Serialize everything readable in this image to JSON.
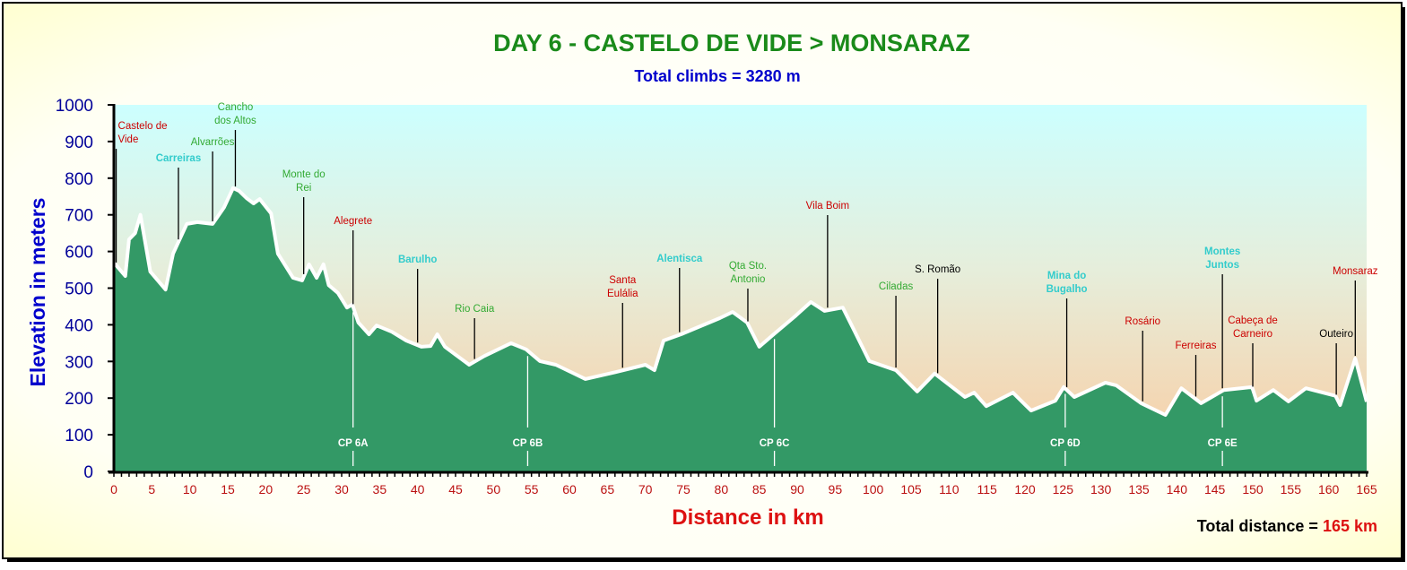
{
  "chart_data": {
    "type": "area",
    "title": "DAY 6 - CASTELO DE VIDE > MONSARAZ",
    "subtitle": "Total climbs = 3280 m",
    "xlabel": "Distance in km",
    "ylabel": "Elevation in meters",
    "footer_label": "Total distance = ",
    "footer_value": "165 km",
    "xlim": [
      0,
      165
    ],
    "ylim": [
      0,
      1000
    ],
    "x_ticks": [
      0,
      5,
      10,
      15,
      20,
      25,
      30,
      35,
      40,
      45,
      50,
      55,
      60,
      65,
      70,
      75,
      80,
      85,
      90,
      95,
      100,
      105,
      110,
      115,
      120,
      125,
      130,
      135,
      140,
      145,
      150,
      155,
      160,
      165
    ],
    "y_ticks": [
      0,
      100,
      200,
      300,
      400,
      500,
      600,
      700,
      800,
      900,
      1000
    ],
    "grid": false,
    "series": [
      {
        "name": "Elevation",
        "x": [
          0,
          0.4,
          1.5,
          2,
          2.8,
          3.5,
          4.8,
          6.8,
          7.8,
          9.6,
          11,
          13,
          14.5,
          15.7,
          16.5,
          17.5,
          18.4,
          19.2,
          20.7,
          21.6,
          23.6,
          24.8,
          25.7,
          26.7,
          27.6,
          28.3,
          29.5,
          30.7,
          31.4,
          32.2,
          33.6,
          34.6,
          36.6,
          38.5,
          40.5,
          41.7,
          42.6,
          43.6,
          46.8,
          48.8,
          52.3,
          54.3,
          56.1,
          58.2,
          62.1,
          66.1,
          70,
          71.2,
          72.4,
          74.7,
          79.8,
          81.5,
          83.4,
          85,
          86.9,
          89.7,
          91.8,
          93.6,
          96,
          97.6,
          99.5,
          103,
          105.8,
          108.1,
          112.1,
          113.3,
          114.9,
          118.4,
          120.8,
          124,
          125.1,
          126.5,
          130.6,
          132,
          135.3,
          138.5,
          140.6,
          143.2,
          146.2,
          149.9,
          150.5,
          152.7,
          154.7,
          157,
          160.9,
          161.5,
          163.5,
          165
        ],
        "y": [
          570,
          560,
          533,
          633,
          650,
          700,
          545,
          496,
          594,
          675,
          680,
          675,
          720,
          773,
          765,
          745,
          731,
          743,
          704,
          594,
          528,
          521,
          565,
          528,
          565,
          508,
          487,
          447,
          455,
          406,
          374,
          398,
          381,
          357,
          340,
          342,
          374,
          340,
          291,
          315,
          350,
          333,
          301,
          291,
          252,
          271,
          291,
          276,
          357,
          374,
          418,
          435,
          406,
          340,
          374,
          423,
          462,
          438,
          447,
          381,
          301,
          276,
          218,
          267,
          203,
          215,
          178,
          215,
          166,
          193,
          230,
          203,
          242,
          235,
          186,
          154,
          227,
          186,
          222,
          230,
          193,
          222,
          191,
          227,
          206,
          181,
          308,
          190
        ]
      }
    ],
    "annotations": [
      {
        "text": [
          "Castelo de",
          "Vide"
        ],
        "km": 0.3,
        "color": "#CC0000"
      },
      {
        "text": [
          "Carreiras"
        ],
        "km": 8.5,
        "color": "#33CCCC"
      },
      {
        "text": [
          "Alvarrões"
        ],
        "km": 13,
        "color": "#33AA33"
      },
      {
        "text": [
          "Cancho",
          "dos Altos"
        ],
        "km": 16,
        "color": "#33AA33"
      },
      {
        "text": [
          "Monte do",
          "Rei"
        ],
        "km": 25,
        "color": "#33AA33"
      },
      {
        "text": [
          "Alegrete"
        ],
        "km": 31.5,
        "color": "#CC0000"
      },
      {
        "text": [
          "Barulho"
        ],
        "km": 40,
        "color": "#33CCCC"
      },
      {
        "text": [
          "Rio Caia"
        ],
        "km": 47.5,
        "color": "#33AA33"
      },
      {
        "text": [
          "Santa",
          "Eulália"
        ],
        "km": 67,
        "color": "#CC0000"
      },
      {
        "text": [
          "Alentisca"
        ],
        "km": 74.5,
        "color": "#33CCCC"
      },
      {
        "text": [
          "Qta Sto.",
          "Antonio"
        ],
        "km": 83.5,
        "color": "#33AA33"
      },
      {
        "text": [
          "Vila Boim"
        ],
        "km": 94,
        "color": "#CC0000"
      },
      {
        "text": [
          "Ciladas"
        ],
        "km": 103,
        "color": "#33AA33"
      },
      {
        "text": [
          "S. Romão"
        ],
        "km": 108.5,
        "color": "#000000"
      },
      {
        "text": [
          "Mina do",
          "Bugalho"
        ],
        "km": 125.5,
        "color": "#33CCCC"
      },
      {
        "text": [
          "Rosário"
        ],
        "km": 135.5,
        "color": "#CC0000"
      },
      {
        "text": [
          "Ferreiras"
        ],
        "km": 142.5,
        "color": "#CC0000"
      },
      {
        "text": [
          "Montes",
          "Juntos"
        ],
        "km": 146,
        "color": "#33CCCC"
      },
      {
        "text": [
          "Cabeça de",
          "Carneiro"
        ],
        "km": 150,
        "color": "#CC0000"
      },
      {
        "text": [
          "Outeiro"
        ],
        "km": 161,
        "color": "#000000"
      },
      {
        "text": [
          "Monsaraz"
        ],
        "km": 163.5,
        "color": "#CC0000"
      }
    ],
    "checkpoints": [
      {
        "text": "CP 6A",
        "km": 31.5
      },
      {
        "text": "CP 6B",
        "km": 54.5
      },
      {
        "text": "CP 6C",
        "km": 87
      },
      {
        "text": "CP 6D",
        "km": 125.3
      },
      {
        "text": "CP 6E",
        "km": 146
      }
    ],
    "colors": {
      "area": "#339966",
      "outline": "#FFFFFF",
      "title": "#1A8A1A",
      "subtitle": "#0000CC",
      "ylabel": "#0000CC",
      "xlabel": "#DD1111",
      "xticks": "#BB1111",
      "yticks": "#000099"
    }
  }
}
